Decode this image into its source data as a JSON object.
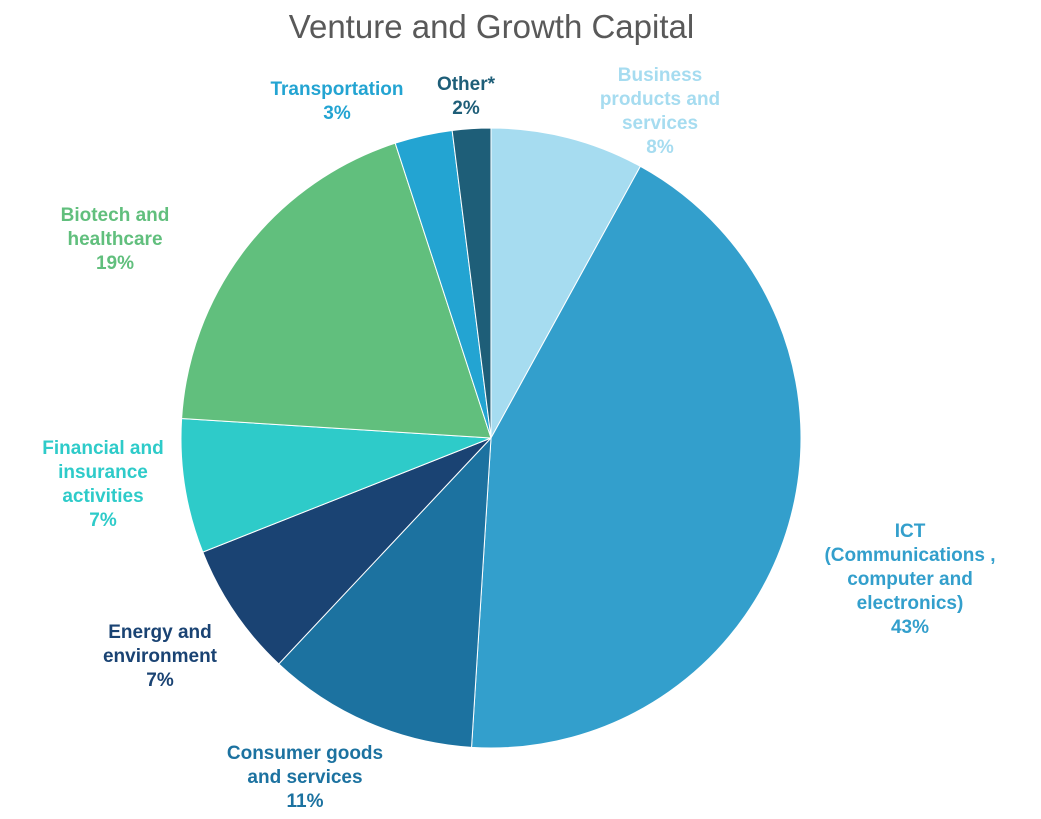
{
  "chart_data": {
    "type": "pie",
    "title": "Venture and Growth Capital",
    "categories": [
      "Business products and services",
      "ICT (Communications , computer and electronics)",
      "Consumer goods and services",
      "Energy and environment",
      "Financial and insurance activities",
      "Biotech and healthcare",
      "Transportation",
      "Other*"
    ],
    "values": [
      8,
      43,
      11,
      7,
      7,
      19,
      3,
      2
    ],
    "value_labels": [
      "8%",
      "43%",
      "11%",
      "7%",
      "7%",
      "19%",
      "3%",
      "2%"
    ],
    "colors": [
      "#a6dcf0",
      "#339fcc",
      "#1c72a0",
      "#1a4373",
      "#2ecbc9",
      "#61bf7d",
      "#23a4d2",
      "#1e5e78"
    ]
  }
}
